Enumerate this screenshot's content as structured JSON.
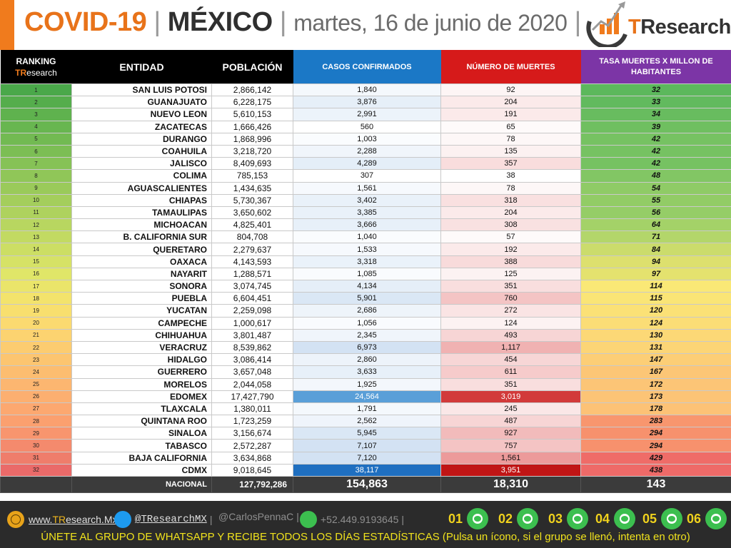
{
  "header": {
    "title_covid": "COVID-19",
    "separator": "|",
    "title_country": "MÉXICO",
    "title_date": "martes, 16 de junio de 2020",
    "logo_t": "T",
    "logo_research": "Research"
  },
  "table": {
    "headers": {
      "rank_line1": "RANKING",
      "rank_line2_t": "TR",
      "rank_line2_rest": "esearch",
      "entidad": "ENTIDAD",
      "poblacion": "POBLACIÓN",
      "cases": "CASOS CONFIRMADOS",
      "deaths": "NÚMERO DE MUERTES",
      "rate": "TASA MUERTES X MILLON DE HABITANTES"
    },
    "rows": [
      {
        "rank": "1",
        "entidad": "SAN LUIS POTOSI",
        "poblacion": "2,866,142",
        "casos": "1,840",
        "muertes": "92",
        "tasa": "32",
        "c_rank": "#4aa84a",
        "c_rate": "#5cb85c",
        "c_cases": "#f4f8fc",
        "c_deaths": "#fdf5f5"
      },
      {
        "rank": "2",
        "entidad": "GUANAJUATO",
        "poblacion": "6,228,175",
        "casos": "3,876",
        "muertes": "204",
        "tasa": "33",
        "c_rank": "#55ad4c",
        "c_rate": "#62ba5e",
        "c_cases": "#e6eff8",
        "c_deaths": "#fbeaea"
      },
      {
        "rank": "3",
        "entidad": "NUEVO LEON",
        "poblacion": "5,610,153",
        "casos": "2,991",
        "muertes": "191",
        "tasa": "34",
        "c_rank": "#5fb24e",
        "c_rate": "#68bc5f",
        "c_cases": "#ecf3fa",
        "c_deaths": "#fbeaea"
      },
      {
        "rank": "4",
        "entidad": "ZACATECAS",
        "poblacion": "1,666,426",
        "casos": "560",
        "muertes": "65",
        "tasa": "39",
        "c_rank": "#68b650",
        "c_rate": "#6fbf60",
        "c_cases": "#ffffff",
        "c_deaths": "#fefafa"
      },
      {
        "rank": "5",
        "entidad": "DURANGO",
        "poblacion": "1,868,996",
        "casos": "1,003",
        "muertes": "78",
        "tasa": "42",
        "c_rank": "#72ba52",
        "c_rate": "#76c262",
        "c_cases": "#fafcfe",
        "c_deaths": "#fdf7f7"
      },
      {
        "rank": "6",
        "entidad": "COAHUILA",
        "poblacion": "3,218,720",
        "casos": "2,288",
        "muertes": "135",
        "tasa": "42",
        "c_rank": "#7cbe54",
        "c_rate": "#76c262",
        "c_cases": "#f0f5fb",
        "c_deaths": "#fcf1f1"
      },
      {
        "rank": "7",
        "entidad": "JALISCO",
        "poblacion": "8,409,693",
        "casos": "4,289",
        "muertes": "357",
        "tasa": "42",
        "c_rank": "#86c256",
        "c_rate": "#76c262",
        "c_cases": "#e4eef8",
        "c_deaths": "#f9dddd"
      },
      {
        "rank": "8",
        "entidad": "COLIMA",
        "poblacion": "785,153",
        "casos": "307",
        "muertes": "38",
        "tasa": "48",
        "c_rank": "#90c658",
        "c_rate": "#82c664",
        "c_cases": "#ffffff",
        "c_deaths": "#ffffff"
      },
      {
        "rank": "9",
        "entidad": "AGUASCALIENTES",
        "poblacion": "1,434,635",
        "casos": "1,561",
        "muertes": "78",
        "tasa": "54",
        "c_rank": "#9aca5a",
        "c_rate": "#8fcb66",
        "c_cases": "#f6f9fd",
        "c_deaths": "#fdf7f7"
      },
      {
        "rank": "10",
        "entidad": "CHIAPAS",
        "poblacion": "5,730,367",
        "casos": "3,402",
        "muertes": "318",
        "tasa": "55",
        "c_rank": "#a4ce5c",
        "c_rate": "#92cc66",
        "c_cases": "#e9f1f9",
        "c_deaths": "#f9e0e0"
      },
      {
        "rank": "11",
        "entidad": "TAMAULIPAS",
        "poblacion": "3,650,602",
        "casos": "3,385",
        "muertes": "204",
        "tasa": "56",
        "c_rank": "#aed25e",
        "c_rate": "#95cd67",
        "c_cases": "#e9f1f9",
        "c_deaths": "#fbeaea"
      },
      {
        "rank": "12",
        "entidad": "MICHOACAN",
        "poblacion": "4,825,401",
        "casos": "3,666",
        "muertes": "308",
        "tasa": "64",
        "c_rank": "#b8d660",
        "c_rate": "#a4d268",
        "c_cases": "#e7f0f9",
        "c_deaths": "#f9e1e1"
      },
      {
        "rank": "13",
        "entidad": "B. CALIFORNIA SUR",
        "poblacion": "804,708",
        "casos": "1,040",
        "muertes": "57",
        "tasa": "71",
        "c_rank": "#c2da62",
        "c_rate": "#b3d66a",
        "c_cases": "#fafcfe",
        "c_deaths": "#fefafa"
      },
      {
        "rank": "14",
        "entidad": "QUERETARO",
        "poblacion": "2,279,637",
        "casos": "1,533",
        "muertes": "192",
        "tasa": "84",
        "c_rank": "#ccde64",
        "c_rate": "#cbdc6c",
        "c_cases": "#f6f9fd",
        "c_deaths": "#fbeaea"
      },
      {
        "rank": "15",
        "entidad": "OAXACA",
        "poblacion": "4,143,593",
        "casos": "3,318",
        "muertes": "388",
        "tasa": "94",
        "c_rank": "#d6e266",
        "c_rate": "#dde06e",
        "c_cases": "#eaf2fa",
        "c_deaths": "#f8dbdb"
      },
      {
        "rank": "16",
        "entidad": "NAYARIT",
        "poblacion": "1,288,571",
        "casos": "1,085",
        "muertes": "125",
        "tasa": "97",
        "c_rank": "#e0e668",
        "c_rate": "#e4e26e",
        "c_cases": "#f9fbfe",
        "c_deaths": "#fcf2f2"
      },
      {
        "rank": "17",
        "entidad": "SONORA",
        "poblacion": "3,074,745",
        "casos": "4,134",
        "muertes": "351",
        "tasa": "114",
        "c_rank": "#eae56a",
        "c_rate": "#fae876",
        "c_cases": "#e5eef8",
        "c_deaths": "#f9dede"
      },
      {
        "rank": "18",
        "entidad": "PUEBLA",
        "poblacion": "6,604,451",
        "casos": "5,901",
        "muertes": "760",
        "tasa": "115",
        "c_rank": "#f3e36c",
        "c_rate": "#fae576",
        "c_cases": "#dae7f5",
        "c_deaths": "#f4c4c4"
      },
      {
        "rank": "19",
        "entidad": "YUCATAN",
        "poblacion": "2,259,098",
        "casos": "2,686",
        "muertes": "272",
        "tasa": "120",
        "c_rank": "#f8df6e",
        "c_rate": "#fbe176",
        "c_cases": "#eef4fa",
        "c_deaths": "#fae4e4"
      },
      {
        "rank": "20",
        "entidad": "CAMPECHE",
        "poblacion": "1,000,617",
        "casos": "1,056",
        "muertes": "124",
        "tasa": "124",
        "c_rank": "#fbda70",
        "c_rate": "#fbdd76",
        "c_cases": "#f9fbfe",
        "c_deaths": "#fcf2f2"
      },
      {
        "rank": "21",
        "entidad": "CHIHUAHUA",
        "poblacion": "3,801,487",
        "casos": "2,345",
        "muertes": "493",
        "tasa": "130",
        "c_rank": "#fcd370",
        "c_rate": "#fcd876",
        "c_cases": "#f0f5fb",
        "c_deaths": "#f7d5d5"
      },
      {
        "rank": "22",
        "entidad": "VERACRUZ",
        "poblacion": "8,539,862",
        "casos": "6,973",
        "muertes": "1,117",
        "tasa": "131",
        "c_rank": "#fccc70",
        "c_rate": "#fcd576",
        "c_cases": "#d3e2f3",
        "c_deaths": "#f0b2b2"
      },
      {
        "rank": "23",
        "entidad": "HIDALGO",
        "poblacion": "3,086,414",
        "casos": "2,860",
        "muertes": "454",
        "tasa": "147",
        "c_rank": "#fcc570",
        "c_rate": "#fcce76",
        "c_cases": "#edf3fa",
        "c_deaths": "#f7d6d6"
      },
      {
        "rank": "24",
        "entidad": "GUERRERO",
        "poblacion": "3,657,048",
        "casos": "3,633",
        "muertes": "611",
        "tasa": "167",
        "c_rank": "#fcbd70",
        "c_rate": "#fcc676",
        "c_cases": "#e7f0f9",
        "c_deaths": "#f6cbcb"
      },
      {
        "rank": "25",
        "entidad": "MORELOS",
        "poblacion": "2,044,058",
        "casos": "1,925",
        "muertes": "351",
        "tasa": "172",
        "c_rank": "#fcb670",
        "c_rate": "#fcc576",
        "c_cases": "#f3f7fc",
        "c_deaths": "#f9dede"
      },
      {
        "rank": "26",
        "entidad": "EDOMEX",
        "poblacion": "17,427,790",
        "casos": "24,564",
        "muertes": "3,019",
        "tasa": "173",
        "c_rank": "#fcaf70",
        "c_rate": "#fcc476",
        "c_cases": "#5a9fd8",
        "c_deaths": "#d23a3a"
      },
      {
        "rank": "27",
        "entidad": "TLAXCALA",
        "poblacion": "1,380,011",
        "casos": "1,791",
        "muertes": "245",
        "tasa": "178",
        "c_rank": "#fca870",
        "c_rate": "#fcc276",
        "c_cases": "#f4f8fc",
        "c_deaths": "#fae7e7"
      },
      {
        "rank": "28",
        "entidad": "QUINTANA ROO",
        "poblacion": "1,723,259",
        "casos": "2,562",
        "muertes": "487",
        "tasa": "283",
        "c_rank": "#fba06f",
        "c_rate": "#f8966e",
        "c_cases": "#eff4fb",
        "c_deaths": "#f7d5d5"
      },
      {
        "rank": "29",
        "entidad": "SINALOA",
        "poblacion": "3,156,674",
        "casos": "5,945",
        "muertes": "927",
        "tasa": "294",
        "c_rank": "#f8956e",
        "c_rate": "#f7916d",
        "c_cases": "#dae7f5",
        "c_deaths": "#f2bbbb"
      },
      {
        "rank": "30",
        "entidad": "TABASCO",
        "poblacion": "2,572,287",
        "casos": "7,107",
        "muertes": "757",
        "tasa": "294",
        "c_rank": "#f48a6d",
        "c_rate": "#f7916d",
        "c_cases": "#d3e2f3",
        "c_deaths": "#f4c4c4"
      },
      {
        "rank": "31",
        "entidad": "BAJA CALIFORNIA",
        "poblacion": "3,634,868",
        "casos": "7,120",
        "muertes": "1,561",
        "tasa": "429",
        "c_rank": "#ef7d6b",
        "c_rate": "#ef6c68",
        "c_cases": "#d3e2f3",
        "c_deaths": "#ec9a9a"
      },
      {
        "rank": "32",
        "entidad": "CDMX",
        "poblacion": "9,018,645",
        "casos": "38,117",
        "muertes": "3,951",
        "tasa": "438",
        "c_rank": "#ea6a69",
        "c_rate": "#ee6a68",
        "c_cases": "#1f6fc0",
        "c_deaths": "#c01515"
      }
    ],
    "total": {
      "label": "NACIONAL",
      "poblacion": "127,792,286",
      "casos": "154,863",
      "muertes": "18,310",
      "tasa": "143"
    }
  },
  "footer": {
    "site_prefix": "www.",
    "site_tr": "TR",
    "site_rest": "esearch.Mx",
    "twitter": "@TResearchMX",
    "twitter2": "@CarlosPennaC",
    "phone": "+52.449.9193645",
    "sep": "|",
    "groups": [
      "01",
      "02",
      "03",
      "04",
      "05",
      "06"
    ],
    "cta": "ÚNETE AL GRUPO DE WHATSAPP Y RECIBE TODOS LOS DÍAS ESTADÍSTICAS (Pulsa un ícono, si el grupo se llenó, intenta en otro)"
  },
  "colors": {
    "brand_orange": "#f07b1d",
    "cases_blue": "#1b78c6",
    "deaths_red": "#d61a1a",
    "rate_purple": "#7c35a6",
    "footer_bg": "#2b2b2b"
  }
}
